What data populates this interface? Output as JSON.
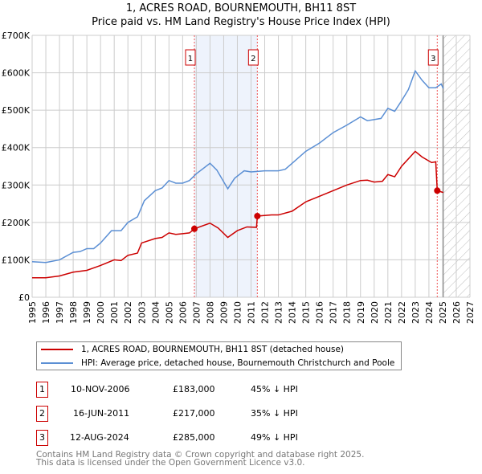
{
  "chart_data": {
    "type": "line",
    "title": "1, ACRES ROAD, BOURNEMOUTH, BH11 8ST",
    "subtitle": "Price paid vs. HM Land Registry's House Price Index (HPI)",
    "xlim": [
      1995,
      2027
    ],
    "ylim": [
      0,
      700000
    ],
    "y_ticks": [
      {
        "v": 0,
        "label": "£0"
      },
      {
        "v": 100000,
        "label": "£100K"
      },
      {
        "v": 200000,
        "label": "£200K"
      },
      {
        "v": 300000,
        "label": "£300K"
      },
      {
        "v": 400000,
        "label": "£400K"
      },
      {
        "v": 500000,
        "label": "£500K"
      },
      {
        "v": 600000,
        "label": "£600K"
      },
      {
        "v": 700000,
        "label": "£700K"
      }
    ],
    "x_ticks": [
      "1995",
      "1996",
      "1997",
      "1998",
      "1999",
      "2000",
      "2001",
      "2002",
      "2003",
      "2004",
      "2005",
      "2006",
      "2007",
      "2008",
      "2009",
      "2010",
      "2011",
      "2012",
      "2013",
      "2014",
      "2015",
      "2016",
      "2017",
      "2018",
      "2019",
      "2020",
      "2021",
      "2022",
      "2023",
      "2024",
      "2025",
      "2026",
      "2027"
    ],
    "grid": true,
    "forecast_start": 2025.05,
    "shaded_range": [
      2006.86,
      2011.46
    ],
    "series": [
      {
        "name": "1, ACRES ROAD, BOURNEMOUTH, BH11 8ST (detached house)",
        "color": "#cc0000",
        "x": [
          1995,
          1996,
          1997,
          1998,
          1999,
          2000,
          2001,
          2001.5,
          2002,
          2002.7,
          2003,
          2004,
          2004.5,
          2005,
          2005.5,
          2006,
          2006.5,
          2006.86,
          2008,
          2008.6,
          2009.3,
          2010,
          2010.7,
          2011.4,
          2011.46,
          2012.5,
          2013,
          2014,
          2015,
          2016,
          2017,
          2018,
          2019,
          2019.5,
          2020,
          2020.6,
          2021,
          2021.5,
          2022,
          2023,
          2023.5,
          2024.2,
          2024.5,
          2024.61,
          2025.05
        ],
        "y": [
          52000,
          52000,
          57000,
          67000,
          72000,
          85000,
          100000,
          98000,
          112000,
          118000,
          145000,
          157000,
          160000,
          172000,
          168000,
          170000,
          172000,
          183000,
          198000,
          185000,
          160000,
          178000,
          188000,
          187000,
          217000,
          220000,
          220000,
          230000,
          255000,
          270000,
          285000,
          300000,
          312000,
          313000,
          308000,
          310000,
          328000,
          322000,
          350000,
          390000,
          375000,
          360000,
          362000,
          285000,
          280000
        ]
      },
      {
        "name": "HPI: Average price, detached house, Bournemouth Christchurch and Poole",
        "color": "#5b8fd4",
        "x": [
          1995,
          1996,
          1997,
          1998,
          1998.5,
          1999,
          1999.5,
          2000,
          2000.8,
          2001.5,
          2002,
          2002.7,
          2003.2,
          2004,
          2004.5,
          2005,
          2005.5,
          2006,
          2006.5,
          2007,
          2008,
          2008.5,
          2009.3,
          2009.8,
          2010.5,
          2011,
          2012,
          2013,
          2013.5,
          2014,
          2015,
          2016,
          2017,
          2018,
          2019,
          2019.5,
          2020.5,
          2021,
          2021.5,
          2022,
          2022.5,
          2023,
          2023.5,
          2024,
          2024.5,
          2024.9,
          2025.05
        ],
        "y": [
          95000,
          93000,
          100000,
          120000,
          122000,
          130000,
          130000,
          145000,
          178000,
          178000,
          200000,
          215000,
          258000,
          285000,
          292000,
          312000,
          305000,
          305000,
          312000,
          330000,
          358000,
          340000,
          290000,
          318000,
          338000,
          335000,
          338000,
          338000,
          342000,
          358000,
          390000,
          412000,
          440000,
          460000,
          482000,
          472000,
          478000,
          505000,
          497000,
          525000,
          555000,
          605000,
          580000,
          560000,
          560000,
          570000,
          558000
        ]
      }
    ],
    "sales": [
      {
        "id": "1",
        "x": 2006.86,
        "price": 183000,
        "date": "10-NOV-2006",
        "price_label": "£183,000",
        "hpi_label": "45% ↓ HPI"
      },
      {
        "id": "2",
        "x": 2011.46,
        "price": 217000,
        "date": "16-JUN-2011",
        "price_label": "£217,000",
        "hpi_label": "35% ↓ HPI"
      },
      {
        "id": "3",
        "x": 2024.61,
        "price": 285000,
        "date": "12-AUG-2024",
        "price_label": "£285,000",
        "hpi_label": "49% ↓ HPI"
      }
    ]
  },
  "footer": {
    "line1": "Contains HM Land Registry data © Crown copyright and database right 2025.",
    "line2": "This data is licensed under the Open Government Licence v3.0."
  }
}
